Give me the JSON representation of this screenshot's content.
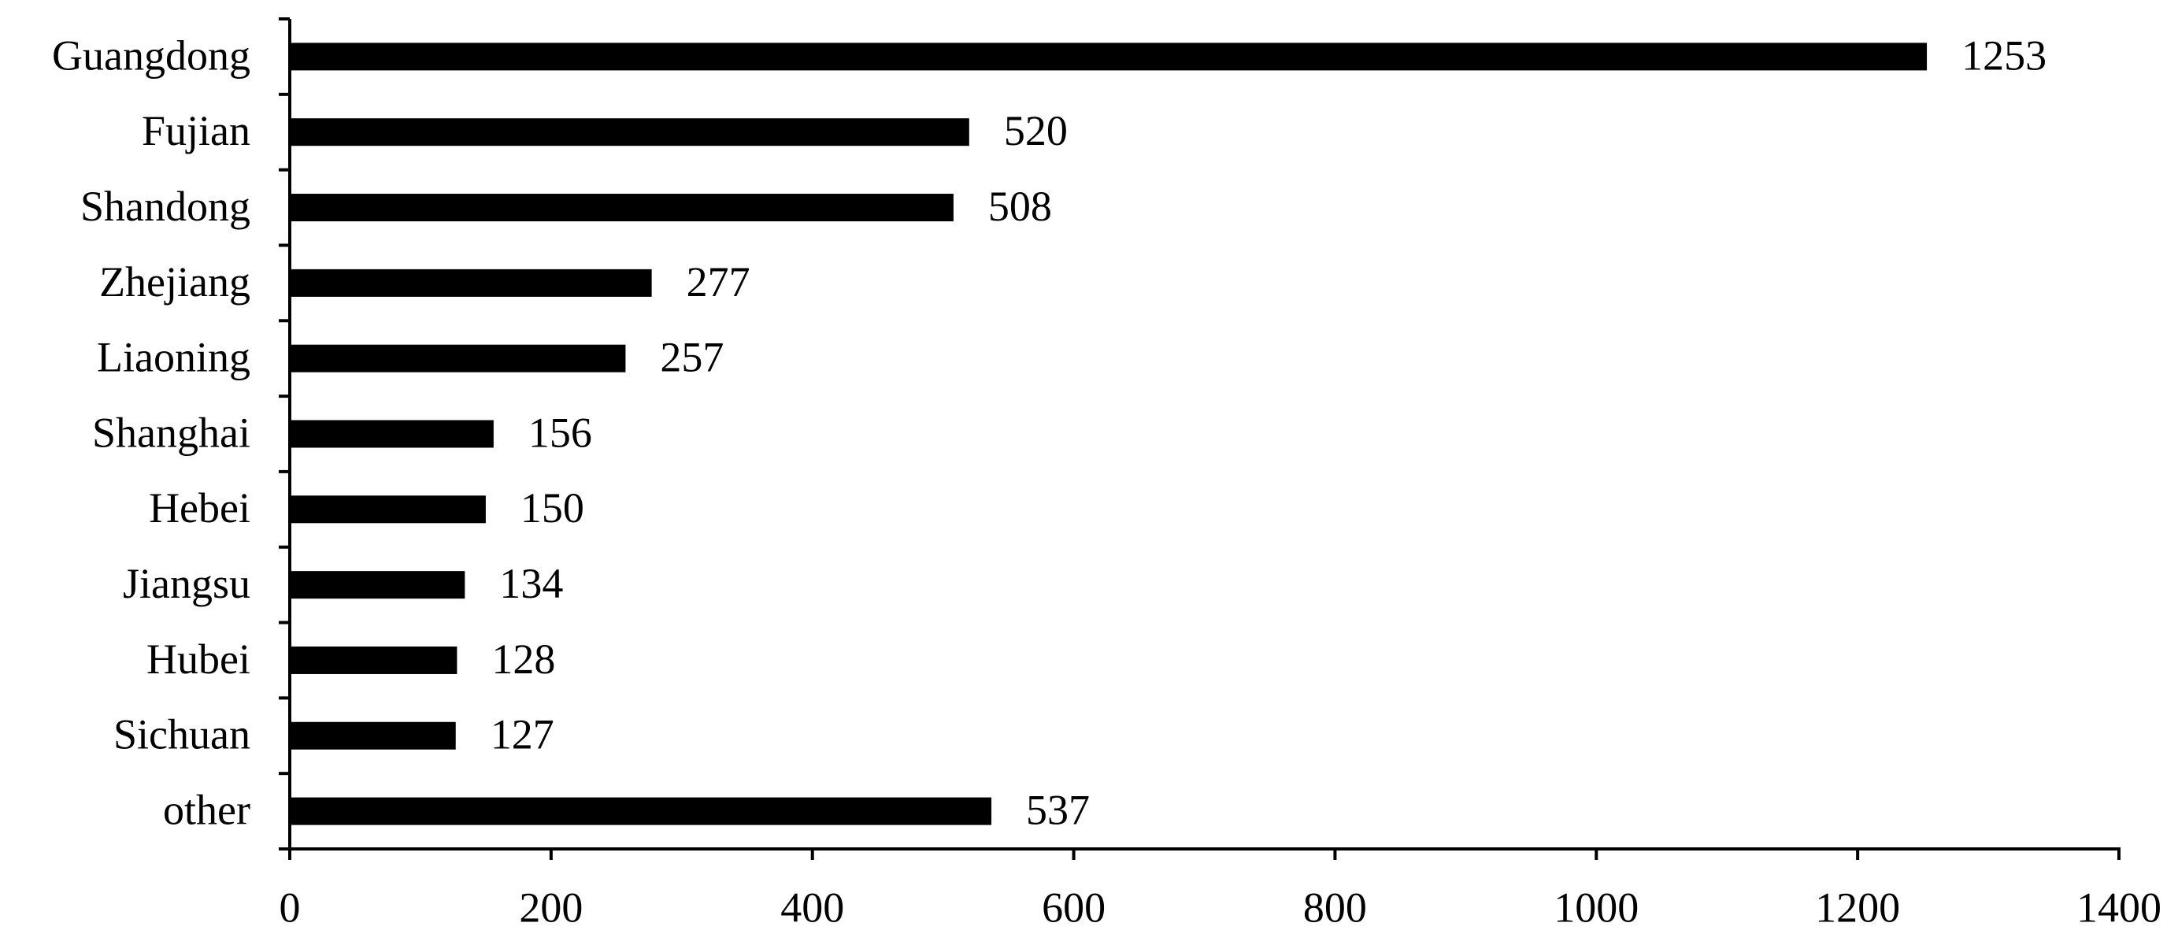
{
  "chart_data": {
    "type": "bar",
    "orientation": "horizontal",
    "categories": [
      "Guangdong",
      "Fujian",
      "Shandong",
      "Zhejiang",
      "Liaoning",
      "Shanghai",
      "Hebei",
      "Jiangsu",
      "Hubei",
      "Sichuan",
      "other"
    ],
    "values": [
      1253,
      520,
      508,
      277,
      257,
      156,
      150,
      134,
      128,
      127,
      537
    ],
    "color": "#000000",
    "xlim": [
      0,
      1400
    ],
    "xticks": [
      0,
      200,
      400,
      600,
      800,
      1000,
      1200,
      1400
    ],
    "grid": false
  }
}
